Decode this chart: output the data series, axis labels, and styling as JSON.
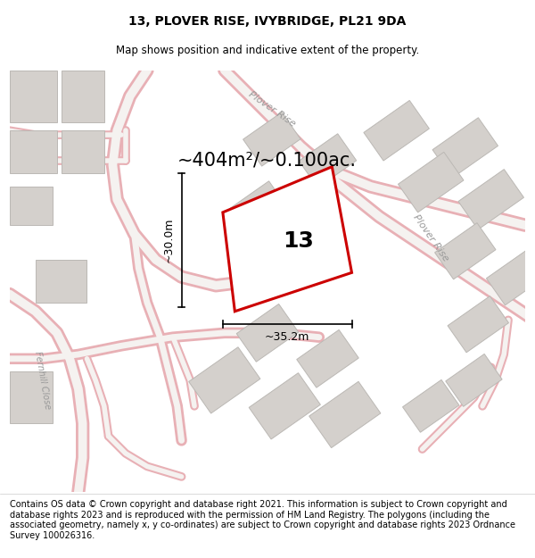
{
  "title_line1": "13, PLOVER RISE, IVYBRIDGE, PL21 9DA",
  "title_line2": "Map shows position and indicative extent of the property.",
  "footer_text": "Contains OS data © Crown copyright and database right 2021. This information is subject to Crown copyright and database rights 2023 and is reproduced with the permission of HM Land Registry. The polygons (including the associated geometry, namely x, y co-ordinates) are subject to Crown copyright and database rights 2023 Ordnance Survey 100026316.",
  "area_label": "~404m²/~0.100ac.",
  "number_label": "13",
  "dim_width_label": "~35.2m",
  "dim_height_label": "~30.0m",
  "bg_color": "#f0eeec",
  "road_outer": "#e8b0b5",
  "road_inner": "#f5f2f0",
  "building_fill": "#d4d0cc",
  "building_edge": "#bbb8b4",
  "boundary_color": "#cc0000",
  "text_color": "#000000",
  "road_label_color": "#999999",
  "title_fontsize": 10,
  "subtitle_fontsize": 8.5,
  "area_fontsize": 15,
  "number_fontsize": 18,
  "dim_fontsize": 9,
  "footer_fontsize": 7,
  "white": "#ffffff"
}
